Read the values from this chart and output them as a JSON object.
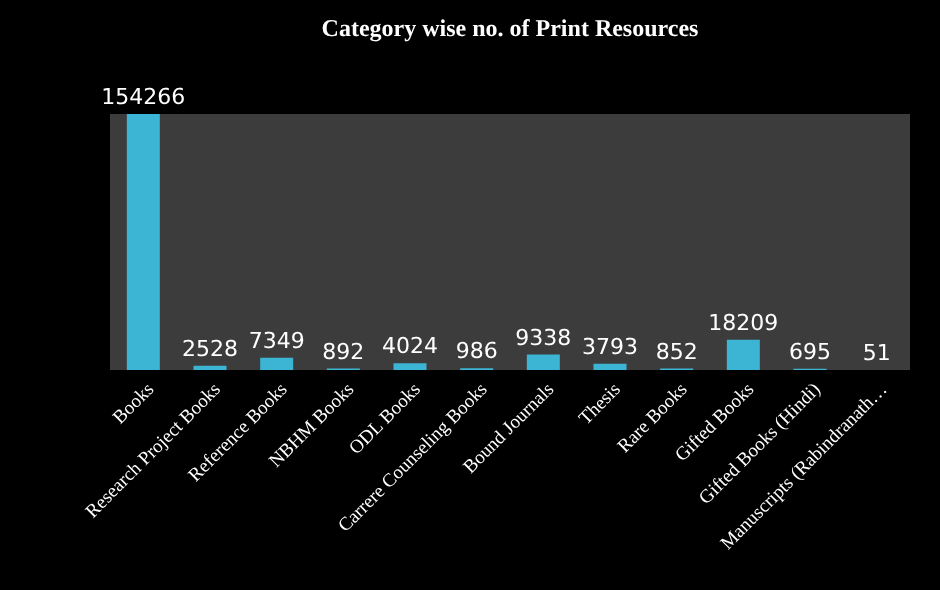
{
  "chart_data": {
    "type": "bar",
    "title": "Category wise no. of Print  Resources",
    "categories": [
      "Books",
      "Research Project Books",
      "Reference Books",
      "NBHM Books",
      "ODL Books",
      "Carrere Counseling Books",
      "Bound Journals",
      "Thesis",
      "Rare Books",
      "Gifted Books",
      "Gifted Books (Hindi)",
      "Manuscripts  (Rabindranath…"
    ],
    "values": [
      154266,
      2528,
      7349,
      892,
      4024,
      986,
      9338,
      3793,
      852,
      18209,
      695,
      51
    ],
    "color": "#3cb4d4",
    "data_labels": true
  }
}
